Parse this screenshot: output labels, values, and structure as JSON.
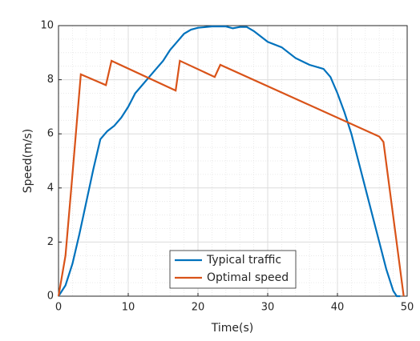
{
  "chart_data": {
    "type": "line",
    "xlabel": "Time(s)",
    "ylabel": "Speed(m/s)",
    "xlim": [
      0,
      50
    ],
    "ylim": [
      0,
      10
    ],
    "xticks": [
      0,
      10,
      20,
      30,
      40,
      50
    ],
    "yticks": [
      0,
      2,
      4,
      6,
      8,
      10
    ],
    "xminorticks": [
      2,
      4,
      6,
      8,
      12,
      14,
      16,
      18,
      22,
      24,
      26,
      28,
      32,
      34,
      36,
      38,
      42,
      44,
      46,
      48
    ],
    "yminorticks": [
      0.5,
      1,
      1.5,
      2.5,
      3,
      3.5,
      4.5,
      5,
      5.5,
      6.5,
      7,
      7.5,
      8.5,
      9,
      9.5
    ],
    "grid": true,
    "minor_grid": true,
    "legend": "bottom",
    "series": [
      {
        "name": "Typical traffic",
        "color": "#0072bd",
        "x": [
          0,
          1,
          2,
          3,
          4,
          5,
          6,
          7,
          8,
          9,
          10,
          11,
          12,
          13,
          14,
          15,
          16,
          17,
          18,
          19,
          20,
          22,
          24,
          25,
          26,
          27,
          28,
          29,
          30,
          32,
          34,
          36,
          38,
          39,
          40,
          41,
          42,
          43,
          44,
          45,
          46,
          47,
          48,
          48.5,
          49
        ],
        "values": [
          0,
          0.4,
          1.2,
          2.3,
          3.5,
          4.7,
          5.8,
          6.1,
          6.3,
          6.6,
          7.0,
          7.5,
          7.8,
          8.1,
          8.4,
          8.7,
          9.1,
          9.4,
          9.7,
          9.85,
          9.92,
          9.97,
          9.97,
          9.9,
          9.95,
          9.95,
          9.8,
          9.6,
          9.4,
          9.2,
          8.8,
          8.55,
          8.4,
          8.1,
          7.5,
          6.8,
          6.0,
          5.0,
          4.0,
          3.0,
          2.0,
          1.0,
          0.2,
          0,
          0
        ]
      },
      {
        "name": "Optimal speed",
        "color": "#d95319",
        "x": [
          0,
          1,
          2,
          3.2,
          6.8,
          7.6,
          16.8,
          17.4,
          22.4,
          23.2,
          46,
          46.6,
          49.5
        ],
        "values": [
          0,
          1.5,
          4.5,
          8.2,
          7.8,
          8.7,
          7.6,
          8.7,
          8.1,
          8.55,
          5.9,
          5.7,
          0
        ]
      }
    ]
  }
}
